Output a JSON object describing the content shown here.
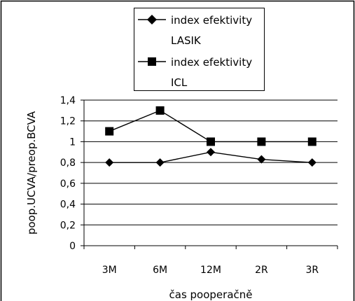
{
  "chart_data": {
    "type": "line",
    "categories": [
      "3M",
      "6M",
      "12M",
      "2R",
      "3R"
    ],
    "series": [
      {
        "name_lines": [
          "index efektivity",
          "LASIK"
        ],
        "marker": "diamond",
        "values": [
          0.8,
          0.8,
          0.9,
          0.83,
          0.8
        ]
      },
      {
        "name_lines": [
          "index efektivity",
          "ICL"
        ],
        "marker": "square",
        "values": [
          1.1,
          1.3,
          1.0,
          1.0,
          1.0
        ]
      }
    ],
    "y_ticks": [
      "0",
      "0,2",
      "0,4",
      "0,6",
      "0,8",
      "1",
      "1,2",
      "1,4"
    ],
    "ylim": [
      0,
      1.4
    ],
    "ylabel": "poop.UCVA/preop.BCVA",
    "xlabel": "čas pooperačně",
    "grid": true,
    "legend_position": "top-center",
    "line_color": "#000000"
  }
}
